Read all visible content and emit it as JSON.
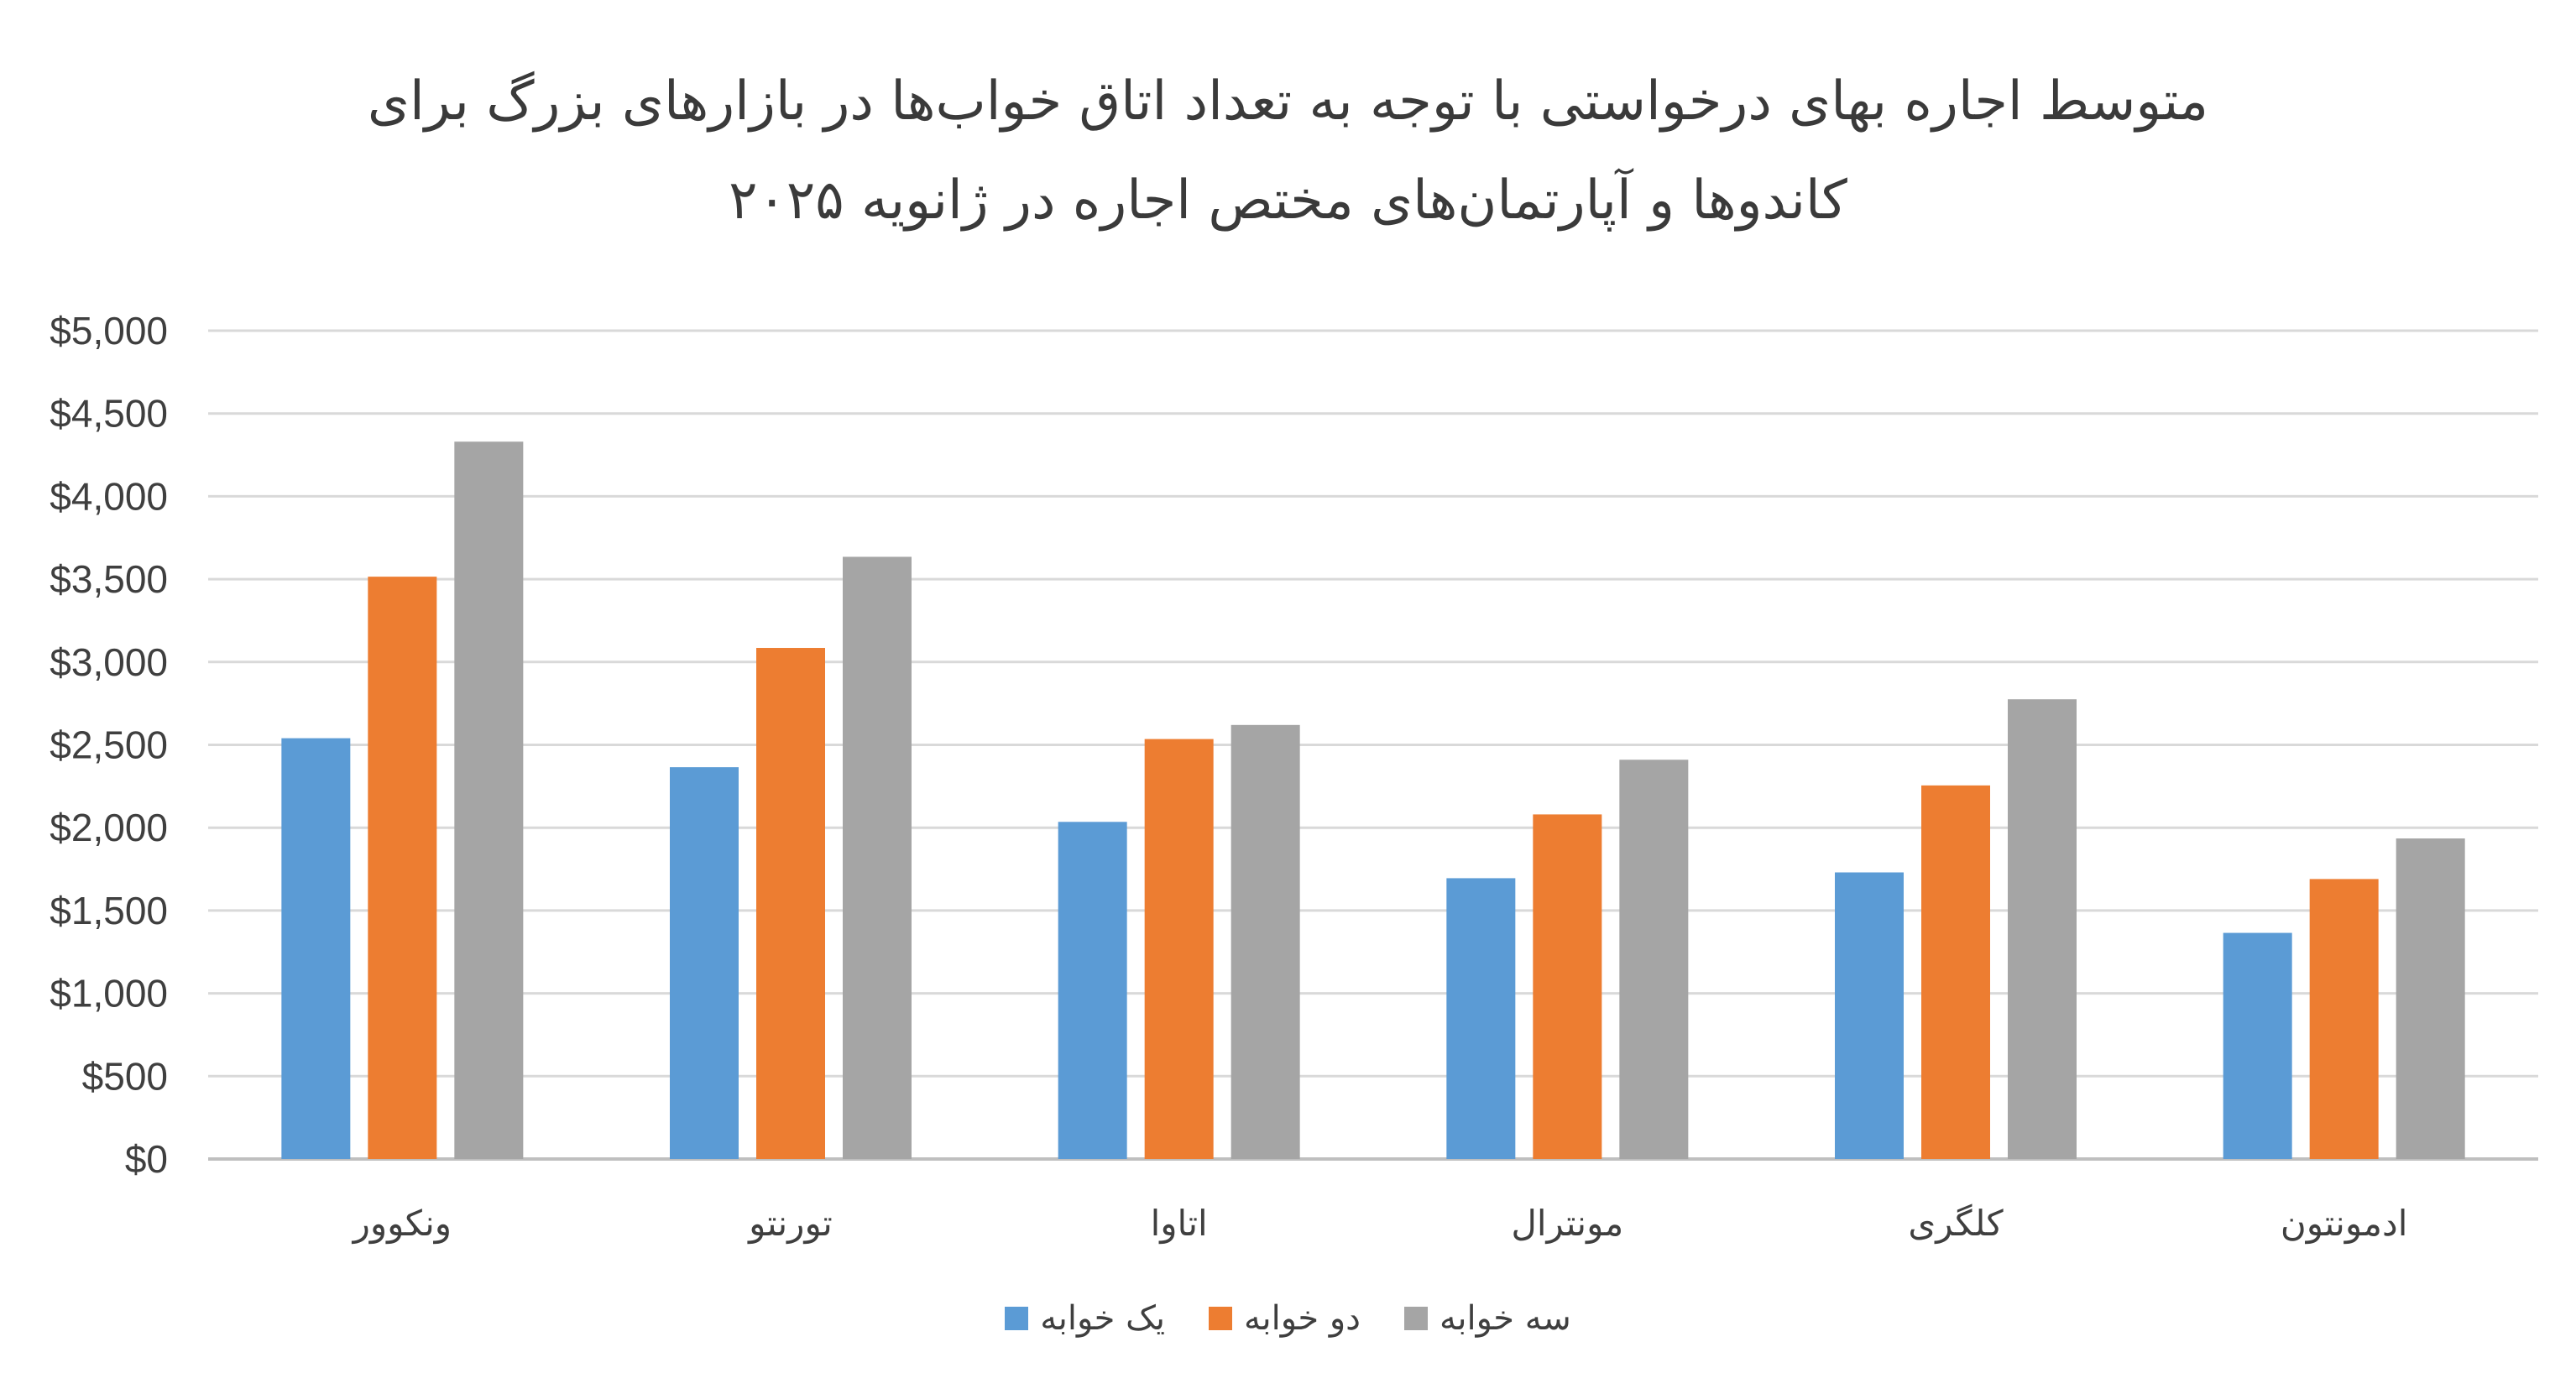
{
  "chart_data": {
    "type": "bar",
    "title_lines": [
      "متوسط اجاره بهای درخواستی با توجه به تعداد اتاق خواب‌ها در بازارهای بزرگ برای",
      "کاندوها و آپارتمان‌های مختص اجاره در ژانویه ۲۰۲۵"
    ],
    "categories": [
      "ونکوور",
      "تورنتو",
      "اتاوا",
      "مونترال",
      "کلگری",
      "ادمونتون"
    ],
    "series": [
      {
        "name": "یک خوابه",
        "color": "#5b9bd5",
        "values": [
          2540,
          2365,
          2035,
          1695,
          1730,
          1365
        ]
      },
      {
        "name": "دو خوابه",
        "color": "#ed7d31",
        "values": [
          3515,
          3085,
          2535,
          2080,
          2255,
          1690
        ]
      },
      {
        "name": "سه خوابه",
        "color": "#a5a5a5",
        "values": [
          4330,
          3635,
          2620,
          2410,
          2775,
          1935
        ]
      }
    ],
    "ylim": [
      0,
      5000
    ],
    "yticks": [
      0,
      500,
      1000,
      1500,
      2000,
      2500,
      3000,
      3500,
      4000,
      4500,
      5000
    ],
    "ytick_labels": [
      "$0",
      "$500",
      "$1,000",
      "$1,500",
      "$2,000",
      "$2,500",
      "$3,000",
      "$3,500",
      "$4,000",
      "$4,500",
      "$5,000"
    ],
    "grid": true,
    "legend_position": "bottom"
  }
}
